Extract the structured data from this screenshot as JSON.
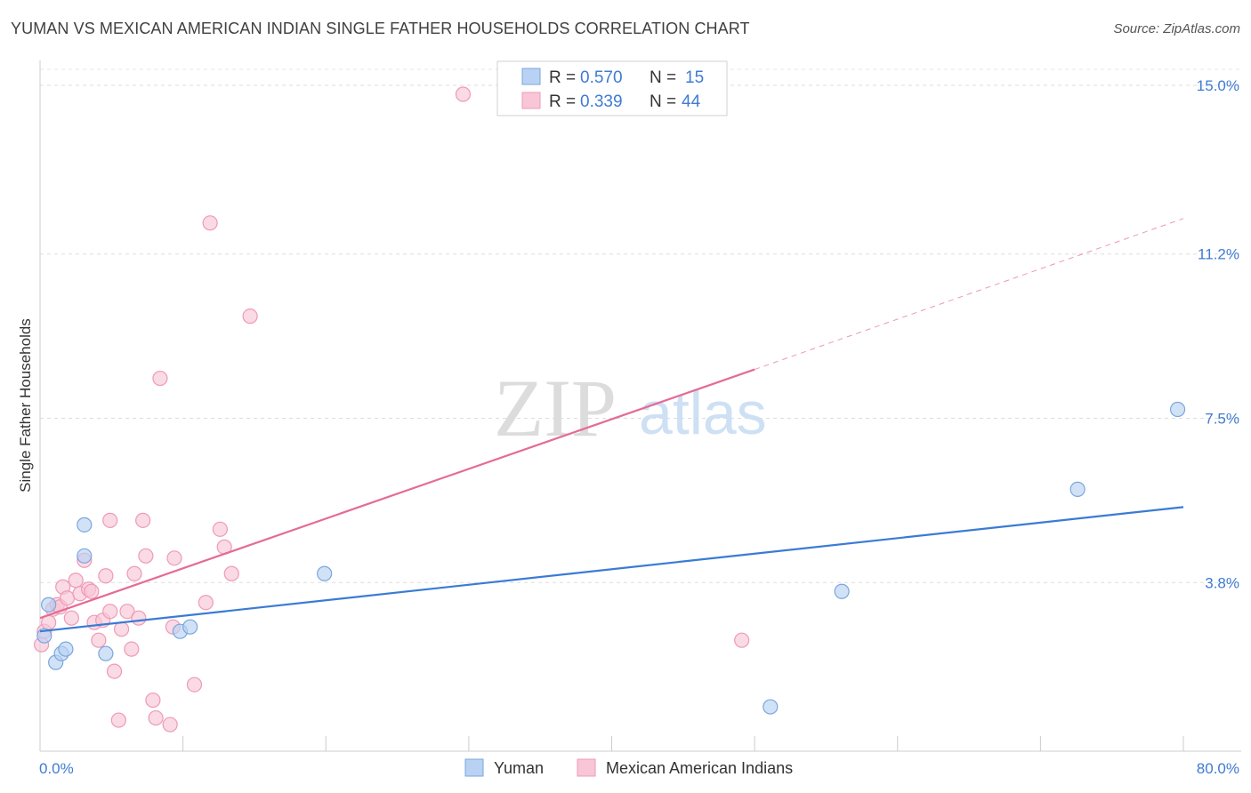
{
  "header": {
    "title": "YUMAN VS MEXICAN AMERICAN INDIAN SINGLE FATHER HOUSEHOLDS CORRELATION CHART",
    "source": "Source: ZipAtlas.com"
  },
  "watermark": {
    "zip": "ZIP",
    "atlas": "atlas"
  },
  "legend_top": {
    "rows": [
      {
        "r_label": "R = ",
        "r_value": "0.570",
        "n_label": "N = ",
        "n_value": "15",
        "color": "#a8c8f0"
      },
      {
        "r_label": "R = ",
        "r_value": "0.339",
        "n_label": "N = ",
        "n_value": "44",
        "color": "#f6b8cc"
      }
    ]
  },
  "legend_bottom": {
    "items": [
      "Yuman",
      "Mexican American Indians"
    ]
  },
  "colors": {
    "yuman_fill": "#b9d2f3",
    "yuman_stroke": "#7aa6de",
    "yuman_line": "#3a7bd5",
    "mex_fill": "#f8c6d6",
    "mex_stroke": "#ef9ab5",
    "mex_line": "#e56b95",
    "tick_label": "#3f7bd2"
  },
  "chart_data": {
    "type": "scatter",
    "title": "YUMAN VS MEXICAN AMERICAN INDIAN SINGLE FATHER HOUSEHOLDS CORRELATION CHART",
    "xlabel": "",
    "ylabel": "Single Father Households",
    "xlim": [
      0,
      80
    ],
    "ylim": [
      0,
      15.5
    ],
    "x_tick_labels": [
      "0.0%",
      "80.0%"
    ],
    "y_ticks": [
      3.8,
      7.5,
      11.2,
      15.0
    ],
    "y_tick_labels": [
      "3.8%",
      "7.5%",
      "11.2%",
      "15.0%"
    ],
    "grid": true,
    "legend_position": "top-center",
    "series": [
      {
        "name": "Yuman",
        "points": [
          [
            0.3,
            2.6
          ],
          [
            0.6,
            3.3
          ],
          [
            1.1,
            2.0
          ],
          [
            1.5,
            2.2
          ],
          [
            1.8,
            2.3
          ],
          [
            3.1,
            5.1
          ],
          [
            3.1,
            4.4
          ],
          [
            4.6,
            2.2
          ],
          [
            9.8,
            2.7
          ],
          [
            10.5,
            2.8
          ],
          [
            19.9,
            4.0
          ],
          [
            56.1,
            3.6
          ],
          [
            51.1,
            1.0
          ],
          [
            72.6,
            5.9
          ],
          [
            79.6,
            7.7
          ]
        ],
        "trend": {
          "x": [
            0,
            80
          ],
          "y": [
            2.7,
            5.5
          ]
        }
      },
      {
        "name": "Mexican American Indians",
        "points": [
          [
            0.1,
            2.4
          ],
          [
            0.3,
            2.7
          ],
          [
            0.6,
            2.9
          ],
          [
            0.9,
            3.2
          ],
          [
            1.2,
            3.3
          ],
          [
            1.4,
            3.25
          ],
          [
            1.6,
            3.7
          ],
          [
            1.9,
            3.45
          ],
          [
            2.2,
            3.0
          ],
          [
            2.5,
            3.85
          ],
          [
            2.8,
            3.55
          ],
          [
            3.1,
            4.3
          ],
          [
            3.4,
            3.65
          ],
          [
            3.6,
            3.6
          ],
          [
            3.8,
            2.9
          ],
          [
            4.1,
            2.5
          ],
          [
            4.4,
            2.95
          ],
          [
            4.6,
            3.95
          ],
          [
            4.9,
            3.15
          ],
          [
            5.2,
            1.8
          ],
          [
            5.5,
            0.7
          ],
          [
            5.7,
            2.75
          ],
          [
            6.1,
            3.15
          ],
          [
            6.4,
            2.3
          ],
          [
            6.6,
            4.0
          ],
          [
            6.9,
            3.0
          ],
          [
            7.2,
            5.2
          ],
          [
            7.4,
            4.4
          ],
          [
            7.9,
            1.15
          ],
          [
            8.1,
            0.75
          ],
          [
            8.4,
            8.4
          ],
          [
            9.1,
            0.6
          ],
          [
            9.4,
            4.35
          ],
          [
            10.8,
            1.5
          ],
          [
            11.6,
            3.35
          ],
          [
            11.9,
            11.9
          ],
          [
            12.6,
            5.0
          ],
          [
            12.9,
            4.6
          ],
          [
            13.4,
            4.0
          ],
          [
            14.7,
            9.8
          ],
          [
            9.3,
            2.8
          ],
          [
            29.6,
            14.8
          ],
          [
            49.1,
            2.5
          ],
          [
            4.9,
            5.2
          ]
        ],
        "trend": {
          "x": [
            0,
            50
          ],
          "y": [
            3.0,
            8.6
          ]
        },
        "trend_extension": {
          "x": [
            50,
            80
          ],
          "y": [
            8.6,
            12.0
          ]
        }
      }
    ]
  }
}
